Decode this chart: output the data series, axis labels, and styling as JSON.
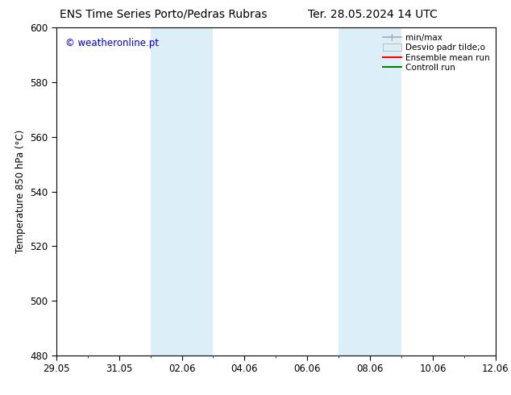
{
  "title_left": "ENS Time Series Porto/Pedras Rubras",
  "title_right": "Ter. 28.05.2024 14 UTC",
  "ylabel": "Temperature 850 hPa (°C)",
  "watermark": "© weatheronline.pt",
  "watermark_color": "#0000cc",
  "ylim": [
    480,
    600
  ],
  "yticks": [
    480,
    500,
    520,
    540,
    560,
    580,
    600
  ],
  "xtick_labels": [
    "29.05",
    "31.05",
    "02.06",
    "04.06",
    "06.06",
    "08.06",
    "10.06",
    "12.06"
  ],
  "xtick_positions_days": [
    0,
    2,
    4,
    6,
    8,
    10,
    12,
    14
  ],
  "xlim": [
    0,
    14
  ],
  "shaded_bands": [
    {
      "start_day": 3.0,
      "end_day": 5.0
    },
    {
      "start_day": 9.0,
      "end_day": 11.0
    }
  ],
  "shade_color": "#dceef8",
  "background_color": "#ffffff",
  "legend_items": [
    {
      "label": "min/max",
      "color": "#aaaaaa",
      "lw": 1.2
    },
    {
      "label": "Desvio padr tilde;o",
      "facecolor": "#ddeef8",
      "edgecolor": "#aaaaaa"
    },
    {
      "label": "Ensemble mean run",
      "color": "#ff0000",
      "lw": 1.5
    },
    {
      "label": "Controll run",
      "color": "#008000",
      "lw": 1.5
    }
  ],
  "title_fontsize": 10,
  "label_fontsize": 8.5,
  "tick_fontsize": 8.5,
  "watermark_fontsize": 8.5
}
